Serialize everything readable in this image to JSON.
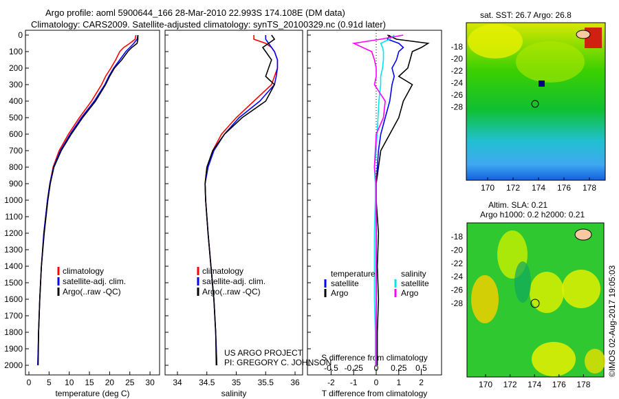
{
  "title": {
    "line1": "Argo profile: aoml 5900644_166 28-Mar-2010 22.993S 174.108E (DM data)",
    "line2": "Climatology: CARS2009. Satellite-adjusted climatology: synTS_20100329.nc (0.91d later)"
  },
  "colors": {
    "climatology": "#ff0000",
    "satellite": "#0000ff",
    "argo": "#000000",
    "sal_satellite": "#00e5ee",
    "sal_argo": "#ff00ff"
  },
  "credit": {
    "line1": "US ARGO PROJECT",
    "line2": "PI: GREGORY C. JOHNSON"
  },
  "stamp": "©IMOS 02-Aug-2017 19:05:03",
  "chart_data": [
    {
      "type": "line",
      "xlabel": "temperature (deg C)",
      "xlim": [
        -2,
        31
      ],
      "ylim": [
        2050,
        0
      ],
      "xticks": [
        "0",
        "5",
        "10",
        "15",
        "20",
        "25",
        "30"
      ],
      "xtick_values": [
        0,
        5,
        10,
        15,
        20,
        25,
        30
      ],
      "yticks": [
        "0",
        "100",
        "200",
        "300",
        "400",
        "500",
        "600",
        "700",
        "800",
        "900",
        "1000",
        "1100",
        "1200",
        "1300",
        "1400",
        "1500",
        "1600",
        "1700",
        "1800",
        "1900",
        "2000"
      ],
      "depth": [
        0,
        25,
        50,
        75,
        100,
        150,
        200,
        250,
        300,
        400,
        500,
        600,
        700,
        800,
        900,
        1000,
        1200,
        1400,
        1600,
        1800,
        2000
      ],
      "legend": [
        "climatology",
        "satellite-adj. clim.",
        "Argo(..raw -QC)"
      ],
      "series": [
        {
          "name": "climatology",
          "values": [
            26.5,
            26.3,
            25,
            23.5,
            22.5,
            21.5,
            20.3,
            19,
            18,
            15.5,
            12.5,
            9.8,
            7.5,
            6,
            5.2,
            4.6,
            3.7,
            3.1,
            2.7,
            2.4,
            2.2
          ]
        },
        {
          "name": "satellite-adj. clim.",
          "values": [
            27,
            26.8,
            26,
            25,
            24,
            22.5,
            21,
            19.8,
            18.8,
            16.2,
            13,
            10.2,
            7.8,
            6.1,
            5.2,
            4.6,
            3.7,
            3.1,
            2.7,
            2.4,
            2.2
          ]
        },
        {
          "name": "Argo(..raw -QC)",
          "values": [
            27,
            27,
            26.8,
            25.5,
            24.5,
            23,
            21.2,
            20,
            19,
            16.5,
            13.3,
            10.5,
            8,
            6.2,
            5.3,
            4.7,
            3.8,
            3.1,
            2.7,
            2.4,
            2.3
          ]
        }
      ]
    },
    {
      "type": "line",
      "xlabel": "salinity",
      "xlim": [
        33.8,
        36.1
      ],
      "ylim": [
        2050,
        0
      ],
      "xticks": [
        "34",
        "34.5",
        "35",
        "35.5",
        "36"
      ],
      "xtick_values": [
        34,
        34.5,
        35,
        35.5,
        36
      ],
      "depth": [
        0,
        25,
        50,
        75,
        100,
        150,
        200,
        250,
        300,
        400,
        500,
        600,
        700,
        800,
        900,
        1000,
        1200,
        1400,
        1600,
        1800,
        2000
      ],
      "legend": [
        "climatology",
        "satellite-adj. clim.",
        "Argo(..raw -QC)"
      ],
      "series": [
        {
          "name": "climatology",
          "values": [
            35.3,
            35.3,
            35.5,
            35.6,
            35.65,
            35.7,
            35.7,
            35.65,
            35.6,
            35.3,
            35.0,
            34.75,
            34.6,
            34.5,
            34.47,
            34.48,
            34.52,
            34.57,
            34.62,
            34.65,
            34.67
          ]
        },
        {
          "name": "satellite-adj. clim.",
          "values": [
            35.5,
            35.5,
            35.55,
            35.6,
            35.65,
            35.7,
            35.7,
            35.68,
            35.65,
            35.4,
            35.05,
            34.8,
            34.62,
            34.52,
            34.47,
            34.48,
            34.52,
            34.57,
            34.62,
            34.65,
            34.67
          ]
        },
        {
          "name": "Argo(..raw -QC)",
          "values": [
            35.6,
            35.65,
            35.55,
            35.45,
            35.5,
            35.6,
            35.55,
            35.5,
            35.65,
            35.5,
            35.1,
            34.8,
            34.6,
            34.5,
            34.47,
            34.48,
            34.52,
            34.57,
            34.62,
            34.65,
            34.66
          ]
        }
      ]
    },
    {
      "type": "line",
      "xlabel": "T difference from climatology",
      "xlabel2": "S difference from climatology",
      "xlim": [
        -3.0,
        3.0
      ],
      "ylim": [
        2050,
        0
      ],
      "xticks": [
        "-2",
        "-1",
        "0",
        "1",
        "2"
      ],
      "xtick_values": [
        -2,
        -1,
        0,
        1,
        2
      ],
      "xticks2": [
        "-0.5",
        "-0.25",
        "0",
        "0.25",
        "0.5"
      ],
      "xtick2_values": [
        -0.5,
        -0.25,
        0,
        0.25,
        0.5
      ],
      "depth": [
        0,
        25,
        50,
        75,
        100,
        150,
        200,
        250,
        300,
        400,
        500,
        600,
        700,
        800,
        900,
        1000,
        1200,
        1400,
        1600,
        1800,
        2000
      ],
      "legend_headers": [
        "temperature",
        "salinity"
      ],
      "legend": [
        "satellite",
        "Argo",
        "satellite",
        "Argo"
      ],
      "series": [
        {
          "name": "T satellite",
          "axis": "T",
          "values": [
            0.6,
            0.5,
            1,
            1.2,
            1.0,
            0.9,
            0.7,
            0.8,
            0.7,
            0.6,
            0.4,
            0.2,
            0.1,
            0.05,
            0,
            0,
            0,
            0,
            0,
            0,
            0
          ]
        },
        {
          "name": "T Argo",
          "axis": "T",
          "values": [
            0.5,
            0.9,
            2.3,
            2.0,
            1.6,
            1.5,
            1.4,
            1.0,
            1.6,
            1.2,
            1.0,
            0.6,
            0.2,
            0.1,
            0,
            0,
            0.1,
            0.05,
            0.1,
            0.05,
            0.05
          ]
        },
        {
          "name": "S satellite",
          "axis": "S",
          "values": [
            0.2,
            0.15,
            0.05,
            0.07,
            0.08,
            0.08,
            0.07,
            0.05,
            0.05,
            0.03,
            0.02,
            0.01,
            0,
            -0.02,
            -0.01,
            -0.01,
            -0.02,
            -0.02,
            -0.02,
            -0.01,
            -0.01
          ]
        },
        {
          "name": "S Argo",
          "axis": "S",
          "values": [
            0.3,
            0.05,
            -0.25,
            -0.15,
            -0.05,
            -0.02,
            0,
            0,
            -0.02,
            0.1,
            0.08,
            0,
            -0.01,
            -0.02,
            0,
            0,
            0,
            0,
            0,
            0,
            0
          ]
        }
      ]
    },
    {
      "type": "heatmap",
      "title": "sat. SST: 26.7 Argo: 26.8",
      "xticks": [
        "170",
        "172",
        "174",
        "176",
        "178"
      ],
      "yticks": [
        "-18",
        "-20",
        "-22",
        "-24",
        "-26",
        "-28"
      ],
      "marker": {
        "lon": 174.108,
        "lat": -22.993
      }
    },
    {
      "type": "heatmap",
      "title": "Altim. SLA: 0.21",
      "subtitle": "Argo h1000: 0.2 h2000: 0.21",
      "xticks": [
        "170",
        "172",
        "174",
        "176",
        "178"
      ],
      "yticks": [
        "-18",
        "-20",
        "-22",
        "-24",
        "-26",
        "-28"
      ],
      "marker": {
        "lon": 174.108,
        "lat": -22.993
      }
    }
  ]
}
